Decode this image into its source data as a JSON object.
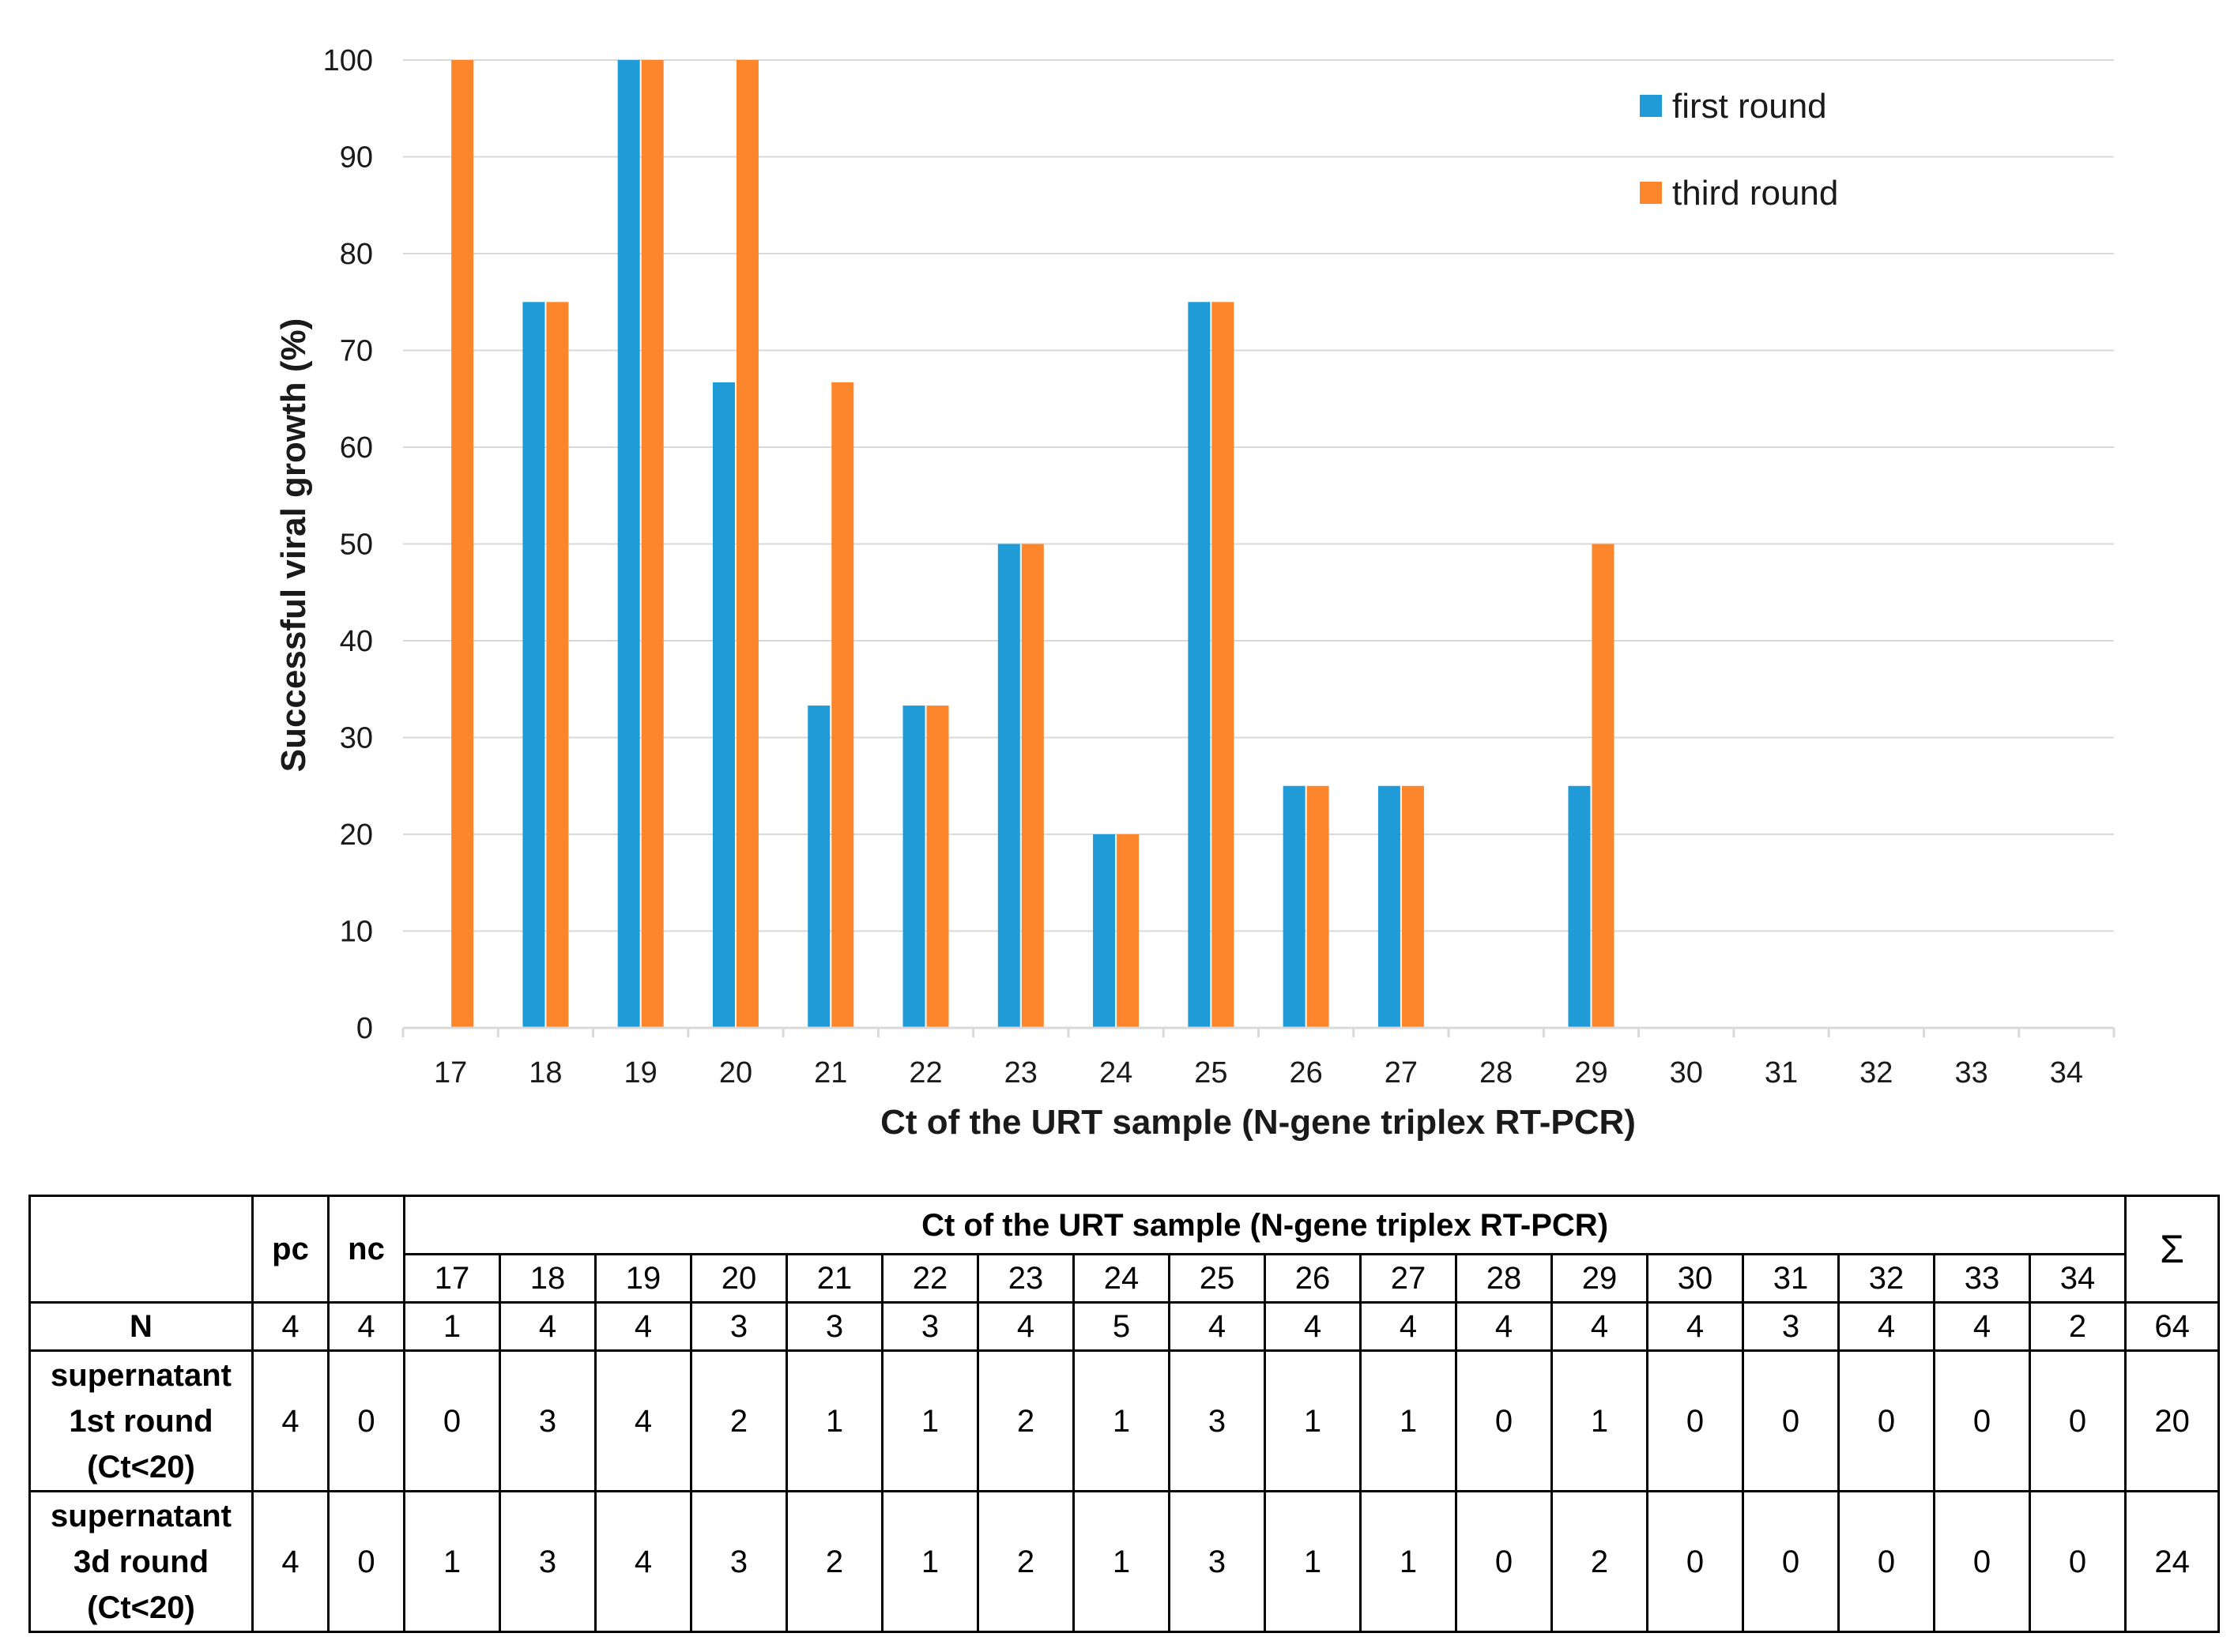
{
  "chart_data": {
    "type": "bar",
    "categories": [
      "17",
      "18",
      "19",
      "20",
      "21",
      "22",
      "23",
      "24",
      "25",
      "26",
      "27",
      "28",
      "29",
      "30",
      "31",
      "32",
      "33",
      "34"
    ],
    "series": [
      {
        "name": "first round",
        "color": "#1f9bd7",
        "values": [
          0,
          75,
          100,
          66.7,
          33.3,
          33.3,
          50,
          20,
          75,
          25,
          25,
          0,
          25,
          0,
          0,
          0,
          0,
          0
        ]
      },
      {
        "name": "third round",
        "color": "#fd862d",
        "values": [
          100,
          75,
          100,
          100,
          66.7,
          33.3,
          50,
          20,
          75,
          25,
          25,
          0,
          50,
          0,
          0,
          0,
          0,
          0
        ]
      }
    ],
    "xlabel": "Ct of the URT sample (N-gene triplex RT-PCR)",
    "ylabel": "Successful viral growth (%)",
    "ylim": [
      0,
      100
    ],
    "yticks": [
      "0",
      "10",
      "20",
      "30",
      "40",
      "50",
      "60",
      "70",
      "80",
      "90",
      "100"
    ],
    "grid": true,
    "legend": "top-right"
  },
  "table": {
    "header_group": "Ct of the URT sample (N-gene triplex RT-PCR)",
    "pc_label": "pc",
    "nc_label": "nc",
    "sum_label": "Σ",
    "ct_columns": [
      "17",
      "18",
      "19",
      "20",
      "21",
      "22",
      "23",
      "24",
      "25",
      "26",
      "27",
      "28",
      "29",
      "30",
      "31",
      "32",
      "33",
      "34"
    ],
    "rows": [
      {
        "label": [
          "N"
        ],
        "pc": "4",
        "nc": "4",
        "values": [
          "1",
          "4",
          "4",
          "3",
          "3",
          "3",
          "4",
          "5",
          "4",
          "4",
          "4",
          "4",
          "4",
          "4",
          "3",
          "4",
          "4",
          "2"
        ],
        "sum": "64"
      },
      {
        "label": [
          "supernatant",
          "1st round",
          "(Ct<20)"
        ],
        "pc": "4",
        "nc": "0",
        "values": [
          "0",
          "3",
          "4",
          "2",
          "1",
          "1",
          "2",
          "1",
          "3",
          "1",
          "1",
          "0",
          "1",
          "0",
          "0",
          "0",
          "0",
          "0"
        ],
        "sum": "20"
      },
      {
        "label": [
          "supernatant",
          "3d round",
          "(Ct<20)"
        ],
        "pc": "4",
        "nc": "0",
        "values": [
          "1",
          "3",
          "4",
          "3",
          "2",
          "1",
          "2",
          "1",
          "3",
          "1",
          "1",
          "0",
          "2",
          "0",
          "0",
          "0",
          "0",
          "0"
        ],
        "sum": "24"
      }
    ]
  }
}
